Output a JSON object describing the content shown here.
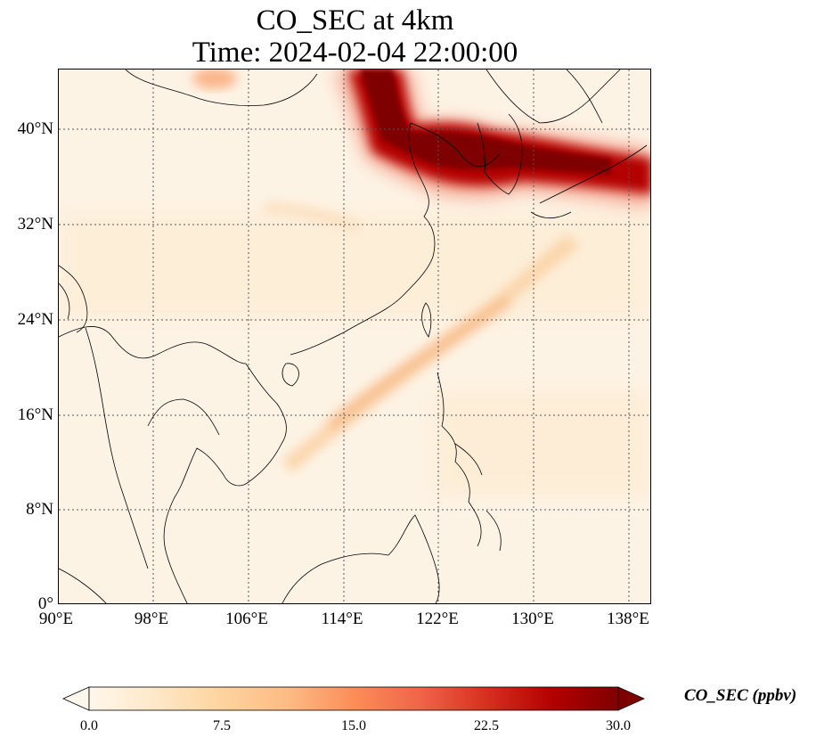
{
  "title": {
    "line1": "CO_SEC at 4km",
    "line2": "Time: 2024-02-04 22:00:00"
  },
  "map": {
    "projection": "PlateCarree",
    "lon_range": [
      90,
      140
    ],
    "lat_range": [
      0,
      45
    ],
    "gridlines": "dotted",
    "lat_ticks": [
      "40°N",
      "32°N",
      "24°N",
      "16°N",
      "8°N",
      "0°"
    ],
    "lon_ticks": [
      "90°E",
      "98°E",
      "106°E",
      "114°E",
      "122°E",
      "130°E",
      "138°E"
    ]
  },
  "field": {
    "variable": "CO_SEC",
    "level": "4km",
    "description_features": [
      "plume over N China and Korea extending east to Japan",
      "diagonal band from S China coast toward NE Pacific"
    ]
  },
  "colorbar": {
    "label": "CO_SEC (ppbv)",
    "ticks": [
      "0.0",
      "7.5",
      "15.0",
      "22.5",
      "30.0"
    ],
    "vmin": 0,
    "vmax": 30,
    "extend": "both",
    "colormap": "OrRd",
    "colors": [
      "#fff7ec",
      "#fee8c8",
      "#fdd49e",
      "#fdbb84",
      "#fc8d59",
      "#ef6548",
      "#d7301f",
      "#b30000",
      "#7f0000"
    ]
  }
}
